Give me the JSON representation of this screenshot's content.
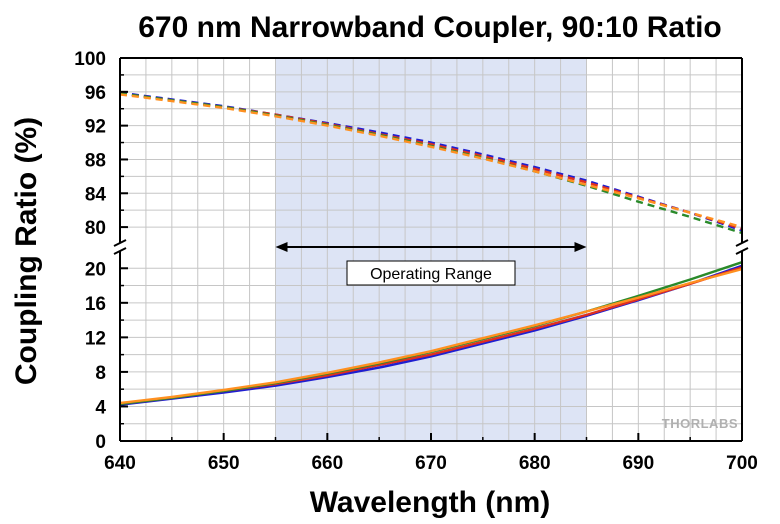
{
  "chart_data": {
    "type": "line",
    "title": "670 nm Narrowband Coupler, 90:10 Ratio",
    "xlabel": "Wavelength (nm)",
    "ylabel": "Coupling Ratio (%)",
    "xlim": [
      640,
      700
    ],
    "x_ticks": [
      640,
      650,
      660,
      670,
      680,
      690,
      700
    ],
    "y_axis_break": true,
    "ylim_upper": [
      78,
      100
    ],
    "y_ticks_upper": [
      80,
      84,
      88,
      92,
      96,
      100
    ],
    "ylim_lower": [
      0,
      22
    ],
    "y_ticks_lower": [
      0,
      4,
      8,
      12,
      16,
      20
    ],
    "grid": true,
    "shaded_region": [
      655,
      685
    ],
    "annotation": {
      "text": "Operating Range",
      "x_range": [
        655,
        685
      ]
    },
    "logo_text": "THORLABS",
    "x": [
      640,
      645,
      650,
      655,
      660,
      665,
      670,
      675,
      680,
      685,
      690,
      695,
      700
    ],
    "series": [
      {
        "color": "#1f1fd0",
        "style": "dashed",
        "values": [
          95.9,
          95.1,
          94.3,
          93.3,
          92.3,
          91.2,
          90.0,
          88.6,
          87.1,
          85.5,
          83.6,
          81.7,
          79.6
        ]
      },
      {
        "color": "#e0301e",
        "style": "dashed",
        "values": [
          95.8,
          95.0,
          94.2,
          93.3,
          92.2,
          91.0,
          89.8,
          88.4,
          86.9,
          85.3,
          83.5,
          81.7,
          79.8
        ]
      },
      {
        "color": "#2a8a2a",
        "style": "dashed",
        "values": [
          95.8,
          95.0,
          94.2,
          93.2,
          92.1,
          90.9,
          89.6,
          88.2,
          86.6,
          84.9,
          83.0,
          81.2,
          79.3
        ]
      },
      {
        "color": "#ff9020",
        "style": "dashed",
        "values": [
          95.7,
          94.9,
          94.1,
          93.1,
          92.0,
          90.8,
          89.5,
          88.1,
          86.6,
          85.0,
          83.4,
          81.7,
          80.0
        ]
      },
      {
        "color": "#1f1fd0",
        "style": "solid",
        "values": [
          4.2,
          4.9,
          5.6,
          6.4,
          7.4,
          8.5,
          9.8,
          11.3,
          12.8,
          14.5,
          16.3,
          18.2,
          20.3
        ]
      },
      {
        "color": "#e0301e",
        "style": "solid",
        "values": [
          4.3,
          5.0,
          5.8,
          6.6,
          7.6,
          8.8,
          10.0,
          11.5,
          13.0,
          14.6,
          16.4,
          18.2,
          20.1
        ]
      },
      {
        "color": "#2a8a2a",
        "style": "solid",
        "values": [
          4.3,
          5.0,
          5.8,
          6.7,
          7.8,
          9.0,
          10.3,
          11.8,
          13.3,
          15.0,
          16.8,
          18.7,
          20.7
        ]
      },
      {
        "color": "#ff9020",
        "style": "solid",
        "values": [
          4.4,
          5.1,
          5.9,
          6.8,
          7.9,
          9.1,
          10.4,
          11.9,
          13.4,
          15.0,
          16.6,
          18.3,
          19.9
        ]
      }
    ]
  }
}
